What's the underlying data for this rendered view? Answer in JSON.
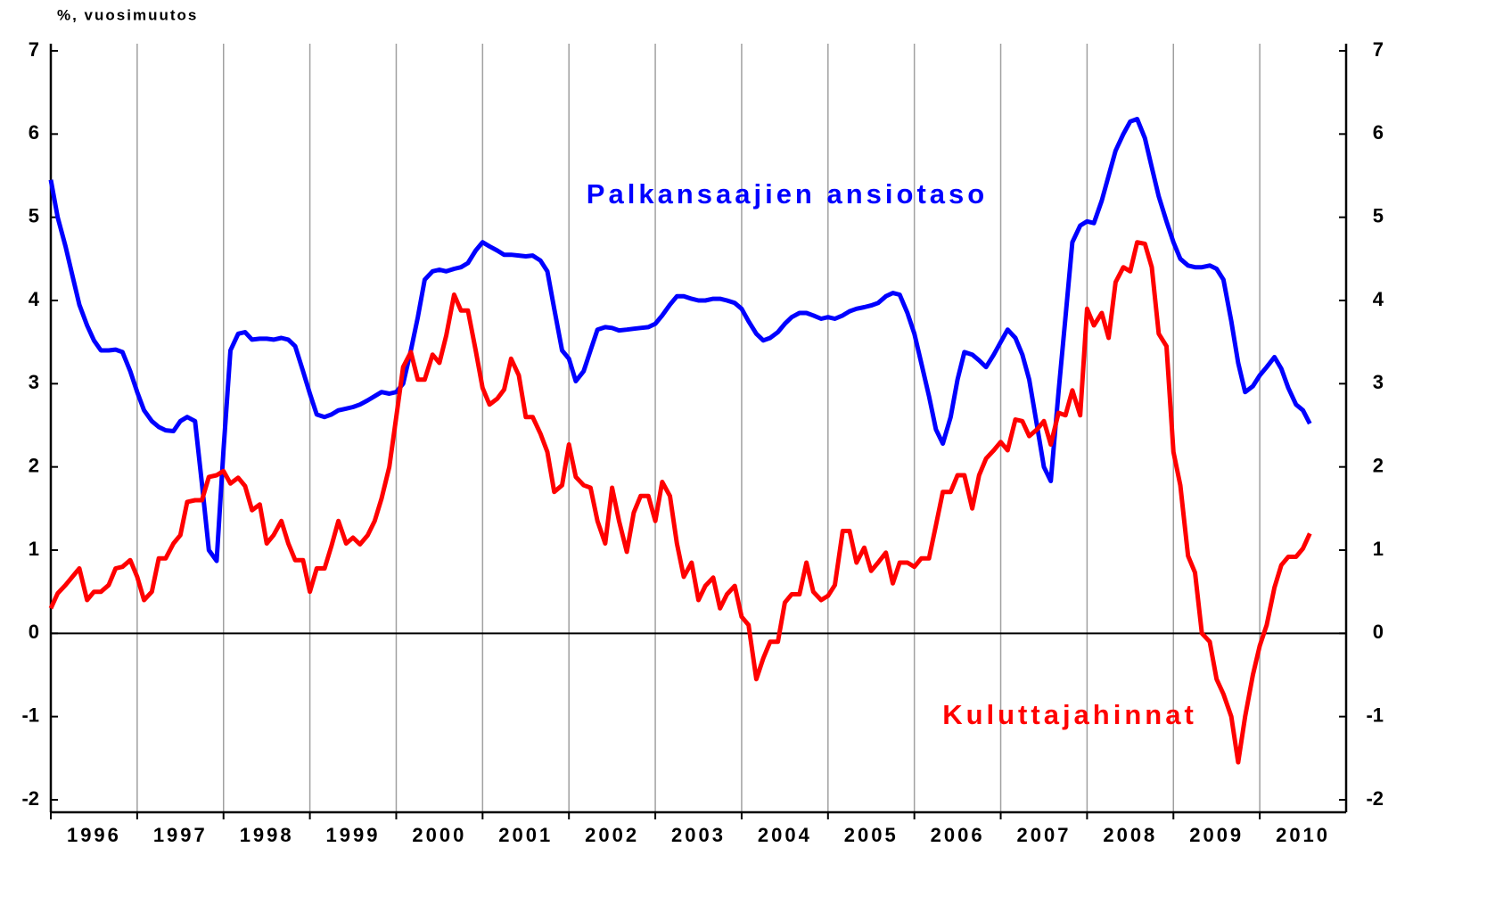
{
  "chart_data": {
    "type": "line",
    "ylabel": "%, vuosimuutos",
    "x": [
      1996,
      1996.08,
      1996.17,
      1996.25,
      1996.33,
      1996.42,
      1996.5,
      1996.58,
      1996.67,
      1996.75,
      1996.83,
      1996.92,
      1997,
      1997.08,
      1997.17,
      1997.25,
      1997.33,
      1997.42,
      1997.5,
      1997.58,
      1997.67,
      1997.75,
      1997.83,
      1997.92,
      1998,
      1998.08,
      1998.17,
      1998.25,
      1998.33,
      1998.42,
      1998.5,
      1998.58,
      1998.67,
      1998.75,
      1998.83,
      1998.92,
      1999,
      1999.08,
      1999.17,
      1999.25,
      1999.33,
      1999.42,
      1999.5,
      1999.58,
      1999.67,
      1999.75,
      1999.83,
      1999.92,
      2000,
      2000.08,
      2000.17,
      2000.25,
      2000.33,
      2000.42,
      2000.5,
      2000.58,
      2000.67,
      2000.75,
      2000.83,
      2000.92,
      2001,
      2001.08,
      2001.17,
      2001.25,
      2001.33,
      2001.42,
      2001.5,
      2001.58,
      2001.67,
      2001.75,
      2001.83,
      2001.92,
      2002,
      2002.08,
      2002.17,
      2002.25,
      2002.33,
      2002.42,
      2002.5,
      2002.58,
      2002.67,
      2002.75,
      2002.83,
      2002.92,
      2003,
      2003.08,
      2003.17,
      2003.25,
      2003.33,
      2003.42,
      2003.5,
      2003.58,
      2003.67,
      2003.75,
      2003.83,
      2003.92,
      2004,
      2004.08,
      2004.17,
      2004.25,
      2004.33,
      2004.42,
      2004.5,
      2004.58,
      2004.67,
      2004.75,
      2004.83,
      2004.92,
      2005,
      2005.08,
      2005.17,
      2005.25,
      2005.33,
      2005.42,
      2005.5,
      2005.58,
      2005.67,
      2005.75,
      2005.83,
      2005.92,
      2006,
      2006.08,
      2006.17,
      2006.25,
      2006.33,
      2006.42,
      2006.5,
      2006.58,
      2006.67,
      2006.75,
      2006.83,
      2006.92,
      2007,
      2007.08,
      2007.17,
      2007.25,
      2007.33,
      2007.42,
      2007.5,
      2007.58,
      2007.67,
      2007.75,
      2007.83,
      2007.92,
      2008,
      2008.08,
      2008.17,
      2008.25,
      2008.33,
      2008.42,
      2008.5,
      2008.58,
      2008.67,
      2008.75,
      2008.83,
      2008.92,
      2009,
      2009.08,
      2009.17,
      2009.25,
      2009.33,
      2009.42,
      2009.5,
      2009.58,
      2009.67,
      2009.75,
      2009.83,
      2009.92,
      2010,
      2010.08,
      2010.17,
      2010.25,
      2010.33,
      2010.42,
      2010.5,
      2010.58
    ],
    "series": [
      {
        "name": "Palkansaajien ansiotaso",
        "color": "#0000ff",
        "values": [
          5.45,
          5.0,
          4.65,
          4.3,
          3.95,
          3.7,
          3.52,
          3.4,
          3.4,
          3.41,
          3.38,
          3.15,
          2.9,
          2.68,
          2.55,
          2.48,
          2.44,
          2.43,
          2.55,
          2.6,
          2.55,
          1.8,
          1.0,
          0.87,
          2.2,
          3.4,
          3.6,
          3.62,
          3.53,
          3.54,
          3.54,
          3.53,
          3.55,
          3.53,
          3.45,
          3.15,
          2.88,
          2.63,
          2.6,
          2.63,
          2.68,
          2.7,
          2.72,
          2.75,
          2.8,
          2.85,
          2.9,
          2.88,
          2.9,
          3.0,
          3.4,
          3.8,
          4.25,
          4.35,
          4.37,
          4.35,
          4.38,
          4.4,
          4.45,
          4.6,
          4.7,
          4.65,
          4.6,
          4.55,
          4.55,
          4.54,
          4.53,
          4.54,
          4.48,
          4.35,
          3.9,
          3.4,
          3.3,
          3.03,
          3.15,
          3.4,
          3.65,
          3.68,
          3.67,
          3.64,
          3.65,
          3.66,
          3.67,
          3.68,
          3.72,
          3.82,
          3.95,
          4.05,
          4.05,
          4.02,
          4.0,
          4.0,
          4.02,
          4.02,
          4.0,
          3.97,
          3.9,
          3.75,
          3.6,
          3.52,
          3.55,
          3.62,
          3.72,
          3.8,
          3.85,
          3.85,
          3.82,
          3.78,
          3.8,
          3.78,
          3.82,
          3.87,
          3.9,
          3.92,
          3.94,
          3.97,
          4.05,
          4.09,
          4.07,
          3.85,
          3.6,
          3.25,
          2.85,
          2.45,
          2.28,
          2.6,
          3.05,
          3.38,
          3.35,
          3.28,
          3.2,
          3.35,
          3.5,
          3.65,
          3.55,
          3.35,
          3.05,
          2.5,
          2.0,
          1.83,
          2.9,
          3.8,
          4.7,
          4.9,
          4.95,
          4.93,
          5.2,
          5.5,
          5.8,
          6.0,
          6.15,
          6.18,
          5.95,
          5.6,
          5.25,
          4.95,
          4.7,
          4.5,
          4.42,
          4.4,
          4.4,
          4.42,
          4.38,
          4.25,
          3.75,
          3.25,
          2.9,
          2.97,
          3.1,
          3.2,
          3.32,
          3.18,
          2.95,
          2.75,
          2.68,
          2.52
        ]
      },
      {
        "name": "Kuluttajahinnat",
        "color": "#ff0000",
        "values": [
          0.3,
          0.48,
          0.58,
          0.68,
          0.78,
          0.4,
          0.5,
          0.5,
          0.58,
          0.78,
          0.8,
          0.88,
          0.68,
          0.4,
          0.5,
          0.9,
          0.9,
          1.08,
          1.18,
          1.58,
          1.6,
          1.6,
          1.88,
          1.9,
          1.95,
          1.8,
          1.87,
          1.77,
          1.48,
          1.55,
          1.08,
          1.18,
          1.35,
          1.08,
          0.88,
          0.88,
          0.5,
          0.78,
          0.78,
          1.05,
          1.35,
          1.08,
          1.15,
          1.07,
          1.18,
          1.35,
          1.62,
          2.0,
          2.6,
          3.2,
          3.38,
          3.05,
          3.05,
          3.35,
          3.25,
          3.58,
          4.07,
          3.88,
          3.88,
          3.4,
          2.95,
          2.75,
          2.82,
          2.93,
          3.3,
          3.1,
          2.6,
          2.6,
          2.4,
          2.18,
          1.7,
          1.78,
          2.27,
          1.88,
          1.78,
          1.75,
          1.35,
          1.08,
          1.75,
          1.35,
          0.98,
          1.45,
          1.65,
          1.65,
          1.35,
          1.82,
          1.65,
          1.08,
          0.68,
          0.85,
          0.4,
          0.57,
          0.67,
          0.3,
          0.47,
          0.57,
          0.2,
          0.1,
          -0.55,
          -0.3,
          -0.1,
          -0.1,
          0.37,
          0.47,
          0.47,
          0.85,
          0.5,
          0.4,
          0.45,
          0.58,
          1.23,
          1.23,
          0.85,
          1.03,
          0.75,
          0.85,
          0.97,
          0.6,
          0.85,
          0.85,
          0.8,
          0.9,
          0.9,
          1.3,
          1.7,
          1.7,
          1.9,
          1.9,
          1.5,
          1.9,
          2.1,
          2.2,
          2.3,
          2.2,
          2.57,
          2.55,
          2.37,
          2.45,
          2.55,
          2.27,
          2.65,
          2.62,
          2.92,
          2.62,
          3.9,
          3.7,
          3.85,
          3.55,
          4.22,
          4.4,
          4.35,
          4.7,
          4.68,
          4.4,
          3.6,
          3.45,
          2.18,
          1.78,
          0.93,
          0.73,
          0.0,
          -0.1,
          -0.55,
          -0.73,
          -1.0,
          -1.55,
          -1.0,
          -0.5,
          -0.15,
          0.1,
          0.55,
          0.82,
          0.92,
          0.92,
          1.02,
          1.2
        ]
      }
    ],
    "xlim": [
      1996,
      2011
    ],
    "xticks": [
      1996,
      1997,
      1998,
      1999,
      2000,
      2001,
      2002,
      2003,
      2004,
      2005,
      2006,
      2007,
      2008,
      2009,
      2010
    ],
    "ylim": [
      -2.15,
      7
    ],
    "yticks": [
      -2,
      -1,
      0,
      1,
      2,
      3,
      4,
      5,
      6,
      7
    ],
    "grid": true
  }
}
